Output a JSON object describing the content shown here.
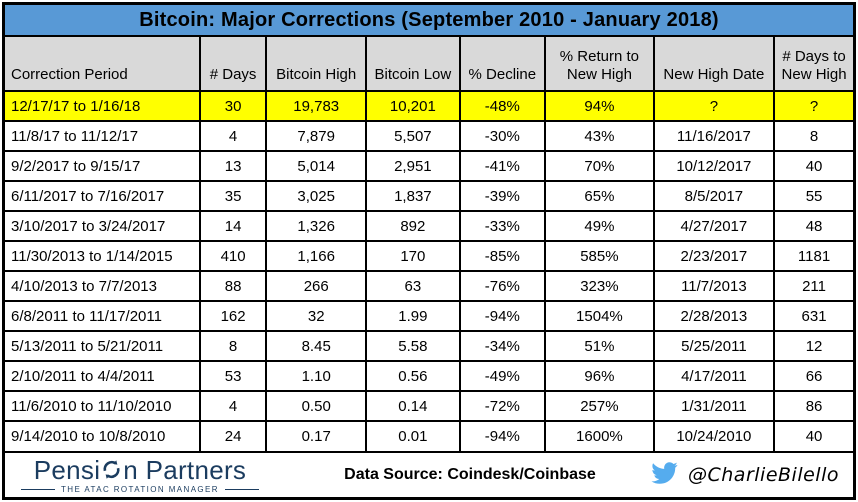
{
  "title": "Bitcoin: Major Corrections (September 2010 - January 2018)",
  "chart_data": {
    "type": "table",
    "title": "Bitcoin: Major Corrections (September 2010 - January 2018)",
    "columns": [
      "Correction Period",
      "# Days",
      "Bitcoin High",
      "Bitcoin Low",
      "% Decline",
      "% Return to\nNew High",
      "New High Date",
      "# Days to\nNew High"
    ],
    "rows": [
      [
        "12/17/17 to 1/16/18",
        "30",
        "19,783",
        "10,201",
        "-48%",
        "94%",
        "?",
        "?"
      ],
      [
        "11/8/17 to 11/12/17",
        "4",
        "7,879",
        "5,507",
        "-30%",
        "43%",
        "11/16/2017",
        "8"
      ],
      [
        "9/2/2017 to 9/15/17",
        "13",
        "5,014",
        "2,951",
        "-41%",
        "70%",
        "10/12/2017",
        "40"
      ],
      [
        "6/11/2017 to 7/16/2017",
        "35",
        "3,025",
        "1,837",
        "-39%",
        "65%",
        "8/5/2017",
        "55"
      ],
      [
        "3/10/2017 to 3/24/2017",
        "14",
        "1,326",
        "892",
        "-33%",
        "49%",
        "4/27/2017",
        "48"
      ],
      [
        "11/30/2013 to 1/14/2015",
        "410",
        "1,166",
        "170",
        "-85%",
        "585%",
        "2/23/2017",
        "1181"
      ],
      [
        "4/10/2013 to 7/7/2013",
        "88",
        "266",
        "63",
        "-76%",
        "323%",
        "11/7/2013",
        "211"
      ],
      [
        "6/8/2011 to 11/17/2011",
        "162",
        "32",
        "1.99",
        "-94%",
        "1504%",
        "2/28/2013",
        "631"
      ],
      [
        "5/13/2011 to 5/21/2011",
        "8",
        "8.45",
        "5.58",
        "-34%",
        "51%",
        "5/25/2011",
        "12"
      ],
      [
        "2/10/2011 to 4/4/2011",
        "53",
        "1.10",
        "0.56",
        "-49%",
        "96%",
        "4/17/2011",
        "66"
      ],
      [
        "11/6/2010 to 11/10/2010",
        "4",
        "0.50",
        "0.14",
        "-72%",
        "257%",
        "1/31/2011",
        "86"
      ],
      [
        "9/14/2010 to 10/8/2010",
        "24",
        "0.17",
        "0.01",
        "-94%",
        "1600%",
        "10/24/2010",
        "40"
      ]
    ],
    "highlighted_row_index": 0,
    "layout_hints": {
      "grid": "black gridlines",
      "header_background": "gray",
      "highlight": "first row yellow"
    }
  },
  "footer": {
    "logo_text_left": "Pensi",
    "logo_text_right": "n Partners",
    "logo_tagline": "THE ATAC ROTATION MANAGER",
    "data_source": "Data Source: Coindesk/Coinbase",
    "twitter_handle": "@CharlieBilello"
  },
  "icons": {
    "logo_o": "rotation-arrows-icon",
    "twitter": "twitter-bird-icon"
  },
  "colors": {
    "title_bg": "#5899D6",
    "header_bg": "#D9D9D9",
    "highlight_bg": "#FFFF00",
    "logo_navy": "#1B3C5F",
    "twitter_blue": "#55ACEE",
    "border": "#000000"
  }
}
